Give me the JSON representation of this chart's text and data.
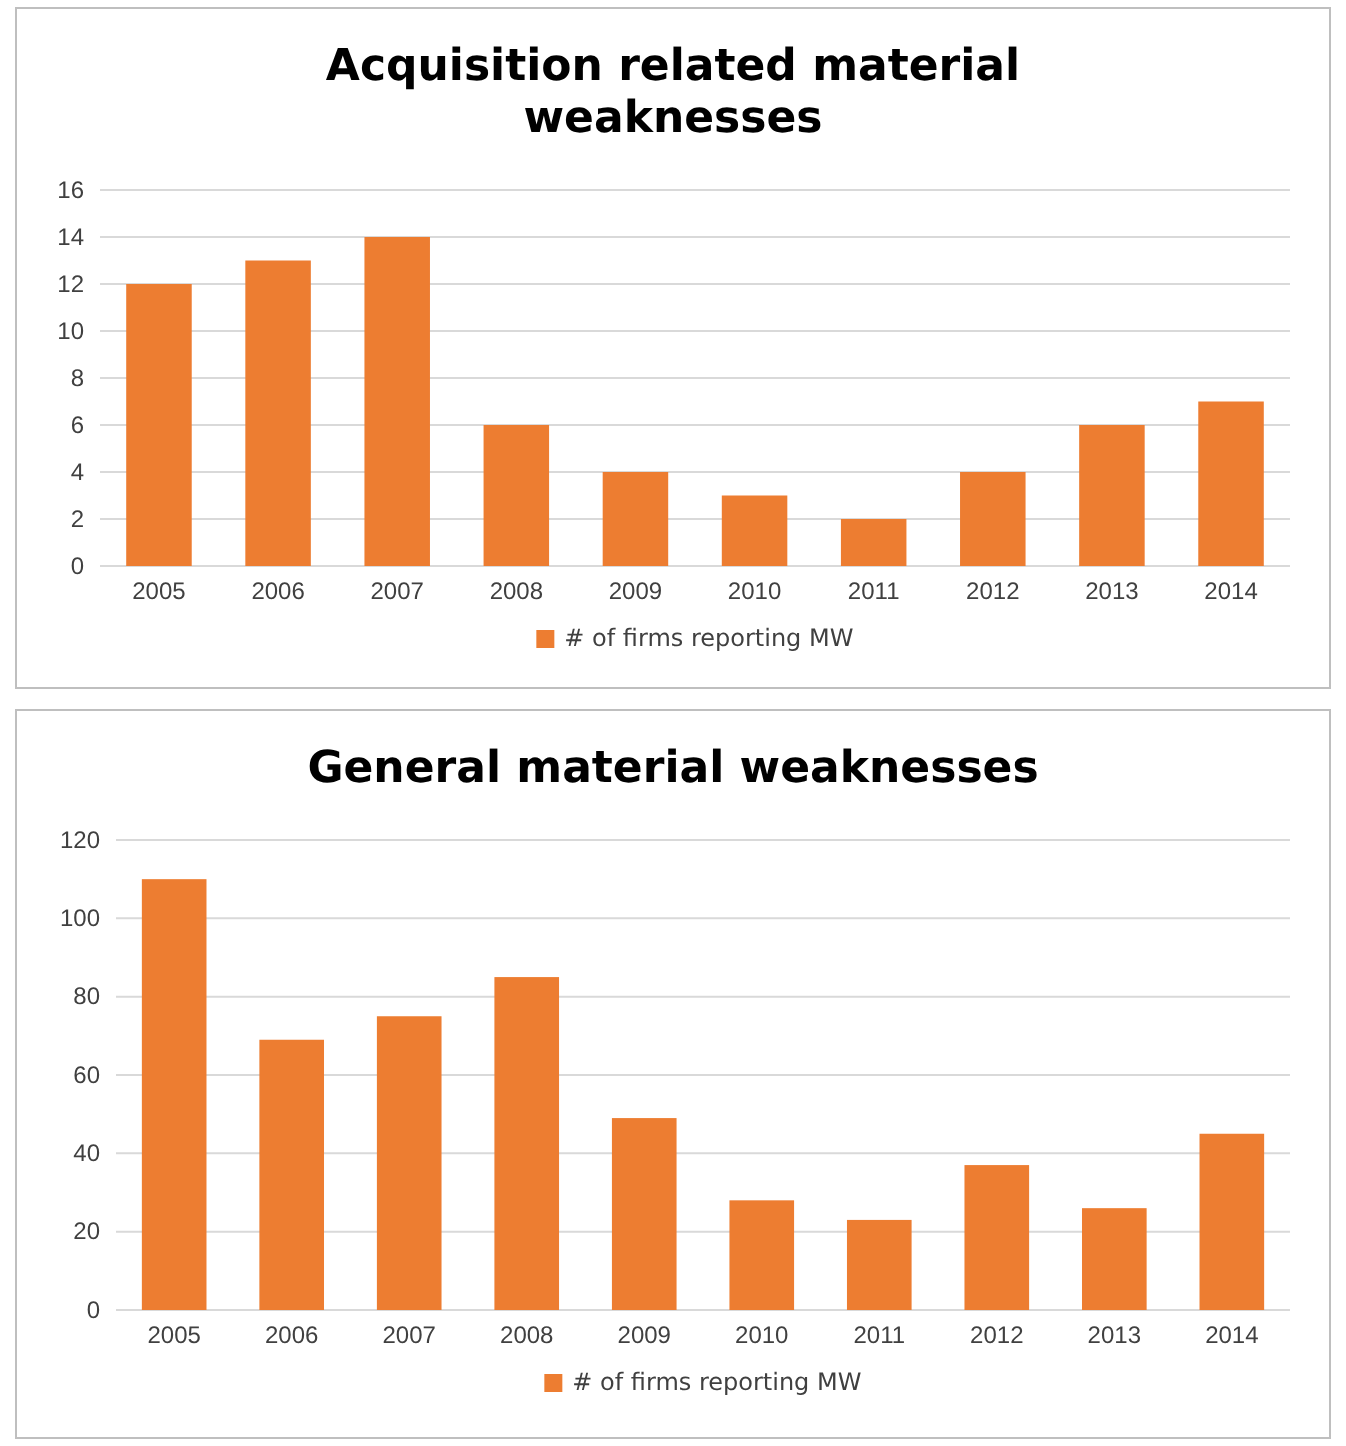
{
  "chart_data": [
    {
      "type": "bar",
      "title": "Acquisition related material weaknesses",
      "categories": [
        "2005",
        "2006",
        "2007",
        "2008",
        "2009",
        "2010",
        "2011",
        "2012",
        "2013",
        "2014"
      ],
      "series": [
        {
          "name": "# of firms reporting MW",
          "color": "#ed7d31",
          "values": [
            12,
            13,
            14,
            6,
            4,
            3,
            2,
            4,
            6,
            7
          ]
        }
      ],
      "ylim": [
        0,
        16
      ],
      "yticks": [
        0,
        2,
        4,
        6,
        8,
        10,
        12,
        14,
        16
      ],
      "grid": "y",
      "legend": "bottom"
    },
    {
      "type": "bar",
      "title": "General material weaknesses",
      "categories": [
        "2005",
        "2006",
        "2007",
        "2008",
        "2009",
        "2010",
        "2011",
        "2012",
        "2013",
        "2014"
      ],
      "series": [
        {
          "name": "# of firms reporting MW",
          "color": "#ed7d31",
          "values": [
            110,
            69,
            75,
            85,
            49,
            28,
            23,
            37,
            26,
            45
          ]
        }
      ],
      "ylim": [
        0,
        120
      ],
      "yticks": [
        0,
        20,
        40,
        60,
        80,
        100,
        120
      ],
      "grid": "y",
      "legend": "bottom"
    }
  ]
}
